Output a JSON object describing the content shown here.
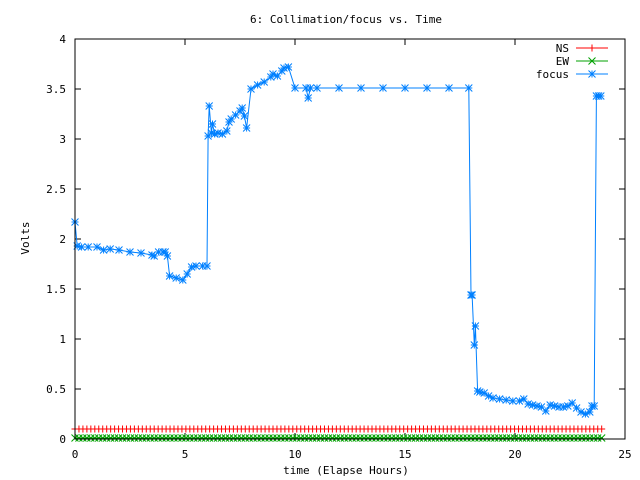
{
  "chart_data": {
    "type": "line",
    "title": "6: Collimation/focus vs. Time",
    "xlabel": "time (Elapse Hours)",
    "ylabel": "Volts",
    "xlim": [
      0,
      25
    ],
    "ylim": [
      0,
      4
    ],
    "x_ticks": [
      0,
      5,
      10,
      15,
      20,
      25
    ],
    "y_ticks": [
      0,
      0.5,
      1,
      1.5,
      2,
      2.5,
      3,
      3.5,
      4
    ],
    "x_tick_labels": [
      "0",
      "5",
      "10",
      "15",
      "20",
      "25"
    ],
    "y_tick_labels": [
      "0",
      "0.5",
      "1",
      "1.5",
      "2",
      "2.5",
      "3",
      "3.5",
      "4"
    ],
    "grid": false,
    "legend_position": "top-right",
    "series": [
      {
        "name": "NS",
        "color": "#ff0000",
        "marker": "plus",
        "x": [
          0,
          24
        ],
        "y": [
          0.1,
          0.1
        ],
        "marker_step": 0.18
      },
      {
        "name": "EW",
        "color": "#00a000",
        "marker": "cross",
        "x": [
          0,
          24
        ],
        "y": [
          0.01,
          0.01
        ],
        "marker_step": 0.18
      },
      {
        "name": "focus",
        "color": "#0080ff",
        "marker": "star",
        "x": [
          0,
          0.1,
          0.3,
          0.6,
          1.0,
          1.3,
          1.6,
          2.0,
          2.5,
          3.0,
          3.5,
          3.6,
          3.8,
          4.0,
          4.1,
          4.2,
          4.3,
          4.6,
          4.9,
          5.1,
          5.3,
          5.5,
          5.8,
          6.0,
          6.05,
          6.1,
          6.2,
          6.25,
          6.35,
          6.5,
          6.7,
          6.9,
          7.0,
          7.1,
          7.3,
          7.5,
          7.6,
          7.7,
          7.8,
          8.0,
          8.3,
          8.6,
          8.9,
          9.0,
          9.2,
          9.4,
          9.5,
          9.7,
          10.0,
          10.5,
          10.6,
          10.7,
          11.0,
          12.0,
          13.0,
          14.0,
          15.0,
          16.0,
          17.0,
          17.9,
          18.0,
          18.05,
          18.15,
          18.2,
          18.3,
          18.4,
          18.6,
          18.8,
          19.0,
          19.3,
          19.6,
          19.9,
          20.2,
          20.4,
          20.6,
          20.8,
          21.0,
          21.2,
          21.4,
          21.6,
          21.8,
          22.0,
          22.2,
          22.4,
          22.6,
          22.8,
          23.0,
          23.2,
          23.4,
          23.5,
          23.6,
          23.7,
          23.8,
          23.9
        ],
        "y": [
          2.17,
          1.93,
          1.92,
          1.92,
          1.92,
          1.89,
          1.9,
          1.89,
          1.87,
          1.86,
          1.84,
          1.83,
          1.87,
          1.87,
          1.87,
          1.83,
          1.63,
          1.61,
          1.59,
          1.65,
          1.72,
          1.73,
          1.73,
          1.73,
          3.03,
          3.33,
          3.06,
          3.15,
          3.05,
          3.06,
          3.05,
          3.08,
          3.17,
          3.2,
          3.24,
          3.28,
          3.31,
          3.23,
          3.11,
          3.5,
          3.54,
          3.57,
          3.62,
          3.65,
          3.63,
          3.68,
          3.71,
          3.72,
          3.51,
          3.51,
          3.41,
          3.51,
          3.51,
          3.51,
          3.51,
          3.51,
          3.51,
          3.51,
          3.51,
          3.51,
          1.44,
          1.44,
          0.94,
          1.13,
          0.48,
          0.47,
          0.46,
          0.43,
          0.41,
          0.4,
          0.39,
          0.38,
          0.38,
          0.4,
          0.35,
          0.34,
          0.33,
          0.32,
          0.28,
          0.34,
          0.33,
          0.32,
          0.32,
          0.33,
          0.36,
          0.31,
          0.27,
          0.25,
          0.27,
          0.33,
          0.33,
          3.43,
          3.43,
          3.43
        ]
      }
    ]
  }
}
